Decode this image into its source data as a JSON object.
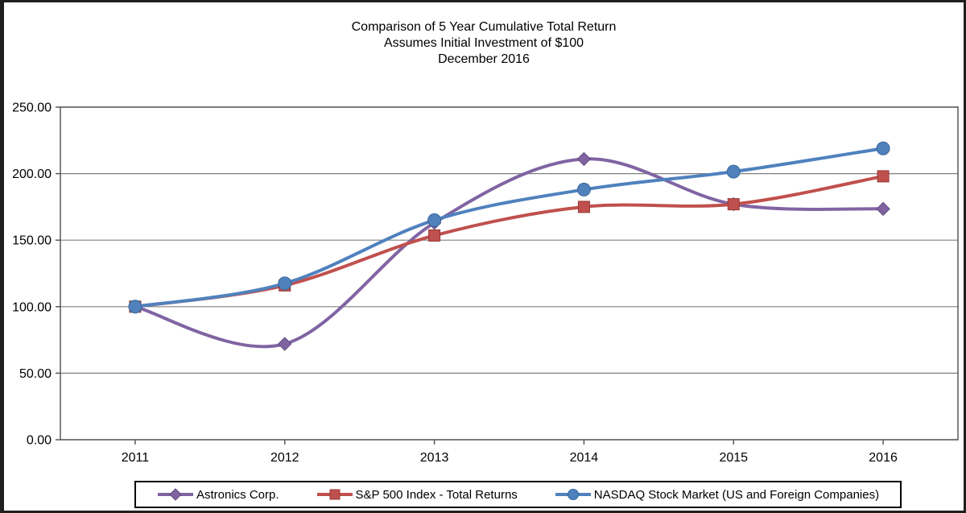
{
  "page": {
    "background": "#FFFFFF",
    "frame_border_color": "#1F1F1F"
  },
  "chart_data": {
    "type": "line",
    "smoothed": true,
    "title_lines": [
      "Comparison of 5 Year Cumulative Total Return",
      "Assumes Initial Investment of $100",
      "December 2016"
    ],
    "categories": [
      "2011",
      "2012",
      "2013",
      "2014",
      "2015",
      "2016"
    ],
    "series": [
      {
        "name": "Astronics Corp.",
        "marker": "diamond",
        "color": "#8064A2",
        "marker_border": "#5F497A",
        "values": [
          100.0,
          72.0,
          163.0,
          211.0,
          177.0,
          173.5
        ]
      },
      {
        "name": "S&P 500 Index - Total Returns",
        "marker": "square",
        "color": "#C0504D",
        "marker_border": "#953734",
        "values": [
          100.0,
          116.0,
          153.5,
          175.0,
          177.0,
          198.0
        ]
      },
      {
        "name": "NASDAQ Stock Market (US and Foreign Companies)",
        "marker": "circle",
        "color": "#4F81BD",
        "marker_border": "#3A679A",
        "values": [
          100.0,
          117.5,
          165.0,
          188.0,
          201.5,
          219.0
        ]
      }
    ],
    "y_axis": {
      "min": 0,
      "max": 250,
      "step": 50,
      "tick_labels": [
        "0.00",
        "50.00",
        "100.00",
        "150.00",
        "200.00",
        "250.00"
      ]
    },
    "grid": {
      "show_horizontal": true,
      "color": "#808080"
    },
    "axis_color": "#595959",
    "legend": {
      "position": "bottom",
      "border_color": "#000000"
    }
  }
}
